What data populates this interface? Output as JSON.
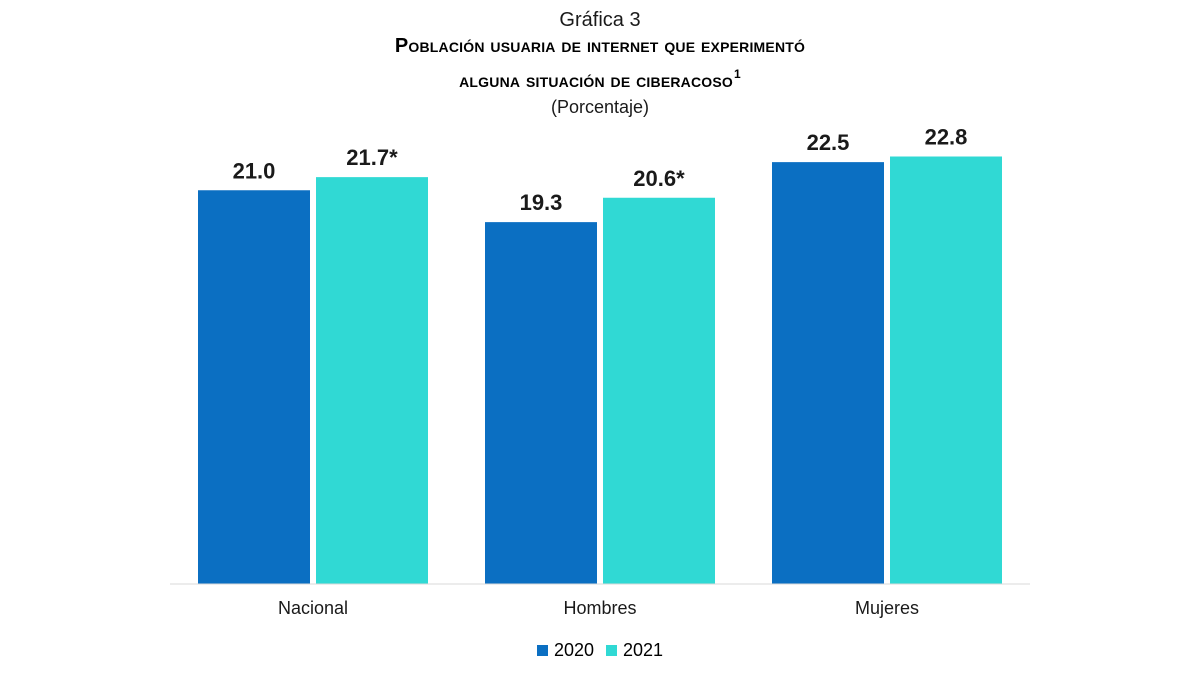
{
  "header": {
    "label": "Gráfica 3",
    "title_line1": "Población usuaria de internet que experimentó",
    "title_line2": "alguna situación de ciberacoso",
    "title_footnote": "1",
    "subtitle": "(Porcentaje)"
  },
  "chart_data": {
    "type": "bar",
    "title": "Población usuaria de internet que experimentó alguna situación de ciberacoso",
    "subtitle": "(Porcentaje)",
    "xlabel": "",
    "ylabel": "",
    "ylim": [
      0,
      24.5
    ],
    "grid": false,
    "legend_position": "bottom",
    "categories": [
      "Nacional",
      "Hombres",
      "Mujeres"
    ],
    "series": [
      {
        "name": "2020",
        "color": "#0b6fc2",
        "values": [
          21.0,
          19.3,
          22.5
        ],
        "labels": [
          "21.0",
          "19.3",
          "22.5"
        ]
      },
      {
        "name": "2021",
        "color": "#30d9d4",
        "values": [
          21.7,
          20.6,
          22.8
        ],
        "labels": [
          "21.7*",
          "20.6*",
          "22.8"
        ]
      }
    ]
  }
}
